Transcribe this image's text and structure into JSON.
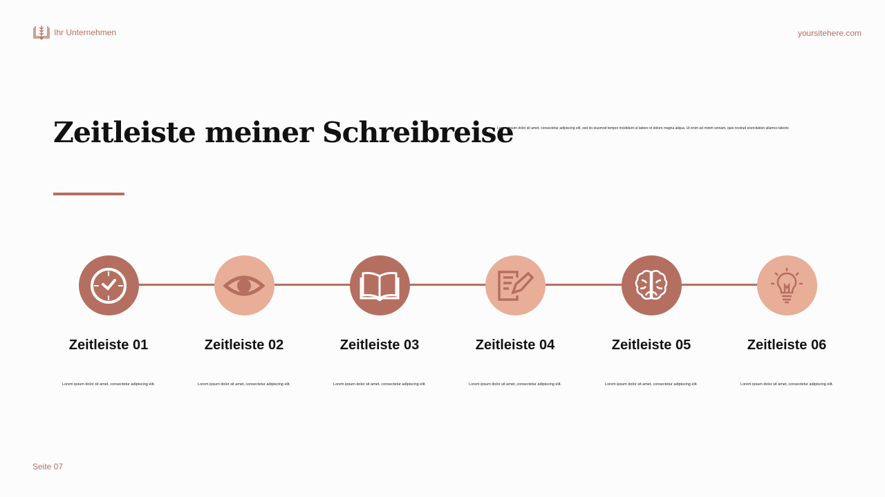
{
  "header": {
    "company": "Ihr Unternehmen",
    "website": "yoursitehere.com"
  },
  "title": "Zeitleiste meiner Schreibreise",
  "description": "Lorem ipsum dolor sit amet, consectetur adipiscing elit, sed do eiusmod tempor incididunt ut labore et dolore magna aliqua. Ut enim ad minim veniam, quis nostrud exercitation ullamco laboris",
  "colors": {
    "accent": "#b56f60",
    "light": "#e8ae98"
  },
  "steps": [
    {
      "label": "Zeitleiste 01",
      "text": "Lorem ipsum dolor sit amet, consectetur adipiscing elit.",
      "icon": "clock-icon"
    },
    {
      "label": "Zeitleiste 02",
      "text": "Lorem ipsum dolor sit amet, consectetur adipiscing elit.",
      "icon": "eye-icon"
    },
    {
      "label": "Zeitleiste 03",
      "text": "Lorem ipsum dolor sit amet, consectetur adipiscing elit.",
      "icon": "book-icon"
    },
    {
      "label": "Zeitleiste 04",
      "text": "Lorem ipsum dolor sit amet, consectetur adipiscing elit.",
      "icon": "document-pen-icon"
    },
    {
      "label": "Zeitleiste 05",
      "text": "Lorem ipsum dolor sit amet, consectetur adipiscing elit.",
      "icon": "brain-icon"
    },
    {
      "label": "Zeitleiste 06",
      "text": "Lorem ipsum dolor sit amet, consectetur adipiscing elit.",
      "icon": "lightbulb-icon"
    }
  ],
  "footer": {
    "page": "Seite 07"
  }
}
